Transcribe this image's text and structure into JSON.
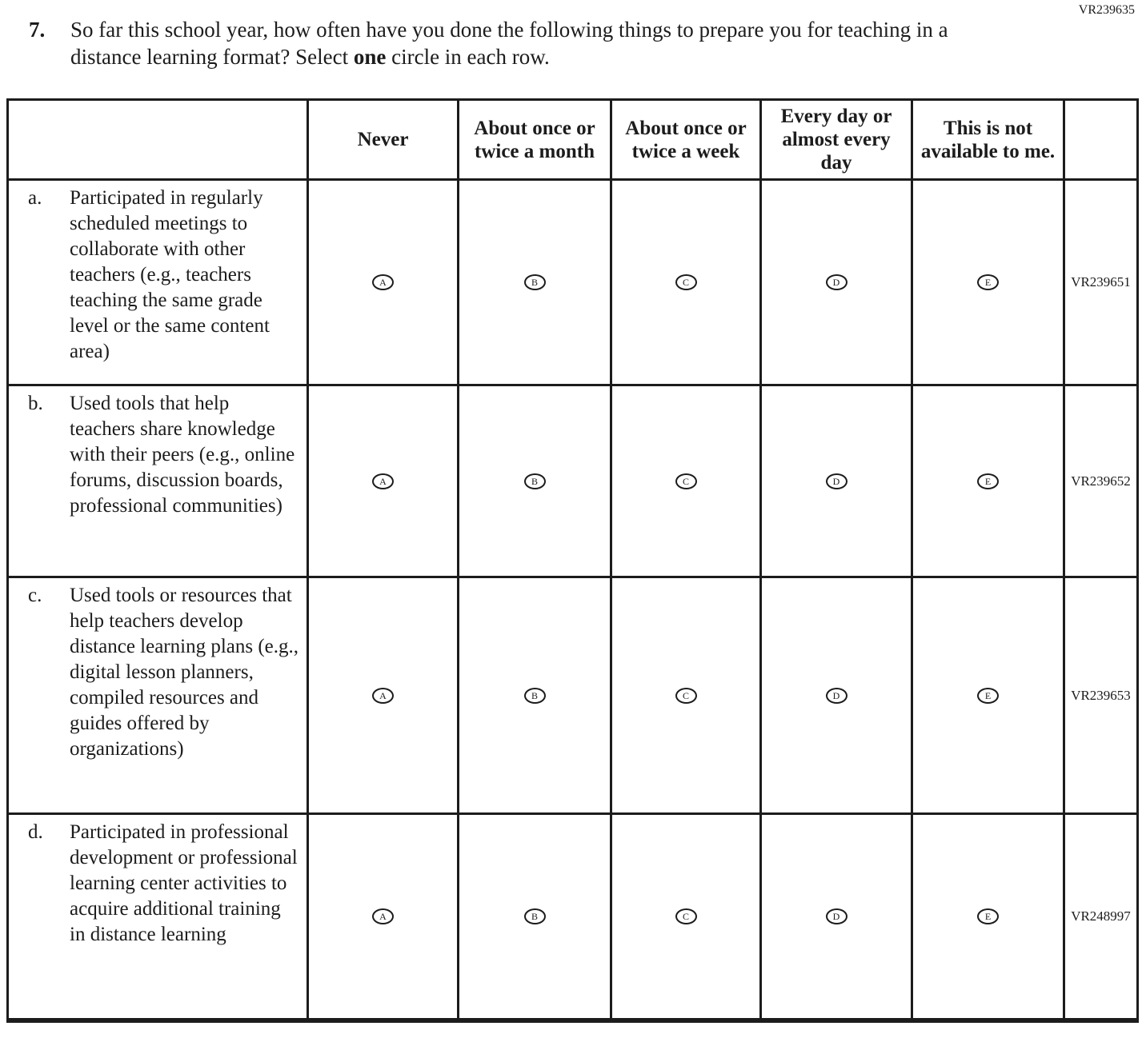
{
  "page_code": "VR239635",
  "question": {
    "number": "7.",
    "text_before_bold": "So far this school year, how often have you done the following things to prepare you for teaching in a distance learning format? Select ",
    "bold_word": "one",
    "text_after_bold": " circle in each row."
  },
  "table": {
    "columns": [
      "",
      "Never",
      "About once or twice a month",
      "About once or twice a week",
      "Every day or almost every day",
      "This is not available to me.",
      ""
    ],
    "options": [
      "A",
      "B",
      "C",
      "D",
      "E"
    ],
    "rows": [
      {
        "letter": "a.",
        "label": "Participated in regularly scheduled meetings to collaborate with other teachers (e.g., teachers teaching the same grade level or the same content area)",
        "code": "VR239651"
      },
      {
        "letter": "b.",
        "label": "Used tools that help teachers share knowledge with their peers (e.g., online forums, discussion boards, professional communities)",
        "code": "VR239652"
      },
      {
        "letter": "c.",
        "label": "Used tools or resources that help teachers develop distance learning plans (e.g., digital lesson planners, compiled resources and guides offered by organizations)",
        "code": "VR239653"
      },
      {
        "letter": "d.",
        "label": "Participated in professional development or professional learning center activities to acquire additional training in distance learning",
        "code": "VR248997"
      }
    ]
  }
}
